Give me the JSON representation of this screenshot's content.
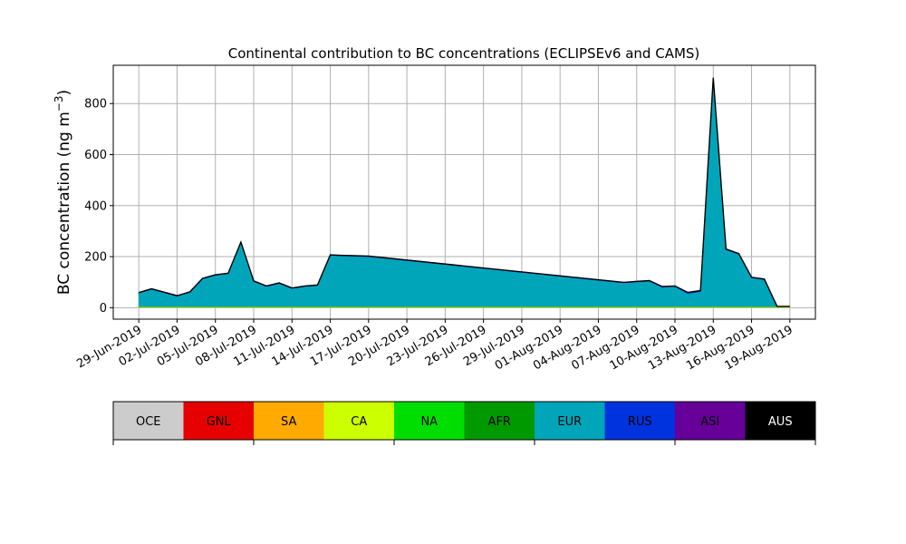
{
  "chart_data": {
    "type": "area",
    "title": "Continental contribution to BC concentrations (ECLIPSEv6 and CAMS)",
    "ylabel": "BC concentration (ng m",
    "ylabel_superscript": "−3",
    "ylabel_suffix": ")",
    "xlabel": "",
    "ylim": [
      -45,
      950
    ],
    "xlim": [
      "2019-06-27",
      "2019-08-21"
    ],
    "yticks": [
      0,
      200,
      400,
      600,
      800
    ],
    "xticks": [
      "2019-06-29",
      "2019-07-02",
      "2019-07-05",
      "2019-07-08",
      "2019-07-11",
      "2019-07-14",
      "2019-07-17",
      "2019-07-20",
      "2019-07-23",
      "2019-07-26",
      "2019-07-29",
      "2019-08-01",
      "2019-08-04",
      "2019-08-07",
      "2019-08-10",
      "2019-08-13",
      "2019-08-16",
      "2019-08-19"
    ],
    "xtick_labels": [
      "29-Jun-2019",
      "02-Jul-2019",
      "05-Jul-2019",
      "08-Jul-2019",
      "11-Jul-2019",
      "14-Jul-2019",
      "17-Jul-2019",
      "20-Jul-2019",
      "23-Jul-2019",
      "26-Jul-2019",
      "29-Jul-2019",
      "01-Aug-2019",
      "04-Aug-2019",
      "07-Aug-2019",
      "10-Aug-2019",
      "13-Aug-2019",
      "16-Aug-2019",
      "19-Aug-2019"
    ],
    "grid": true,
    "x": [
      "2019-06-29",
      "2019-06-30",
      "2019-07-02",
      "2019-07-03",
      "2019-07-04",
      "2019-07-05",
      "2019-07-06",
      "2019-07-07",
      "2019-07-08",
      "2019-07-09",
      "2019-07-10",
      "2019-07-11",
      "2019-07-12",
      "2019-07-13",
      "2019-07-14",
      "2019-07-15",
      "2019-07-17",
      "2019-08-06",
      "2019-08-07",
      "2019-08-08",
      "2019-08-09",
      "2019-08-10",
      "2019-08-11",
      "2019-08-12",
      "2019-08-13",
      "2019-08-14",
      "2019-08-15",
      "2019-08-16",
      "2019-08-17",
      "2019-08-18",
      "2019-08-19"
    ],
    "series": [
      {
        "name": "OCE",
        "color": "#cccccc",
        "values": [
          1,
          1,
          1,
          1,
          1,
          1,
          1,
          1,
          1,
          1,
          1,
          1,
          1,
          1,
          1,
          1,
          1,
          1,
          1,
          1,
          1,
          1,
          1,
          1,
          1,
          1,
          1,
          1,
          1,
          1,
          1
        ]
      },
      {
        "name": "GNL",
        "color": "#e60000",
        "values": [
          0,
          0,
          0,
          0,
          0,
          0,
          0,
          0,
          0,
          0,
          0,
          0,
          0,
          0,
          0,
          0,
          0,
          0,
          0,
          0,
          0,
          0,
          0,
          0,
          0,
          0,
          0,
          0,
          0,
          0,
          0
        ]
      },
      {
        "name": "SA",
        "color": "#ffaa00",
        "values": [
          1,
          1,
          1,
          1,
          1,
          1,
          1,
          1,
          1,
          1,
          1,
          1,
          1,
          1,
          1,
          1,
          1,
          1,
          1,
          1,
          1,
          1,
          1,
          1,
          1,
          1,
          1,
          1,
          1,
          1,
          1
        ]
      },
      {
        "name": "CA",
        "color": "#ccff00",
        "values": [
          1,
          1,
          1,
          1,
          1,
          1,
          1,
          1,
          1,
          1,
          1,
          1,
          1,
          1,
          1,
          1,
          1,
          1,
          1,
          1,
          1,
          1,
          1,
          1,
          1,
          1,
          1,
          1,
          1,
          1,
          1
        ]
      },
      {
        "name": "NA",
        "color": "#00dd00",
        "values": [
          2,
          2,
          2,
          2,
          2,
          2,
          2,
          2,
          2,
          2,
          2,
          2,
          2,
          2,
          2,
          2,
          2,
          2,
          2,
          2,
          2,
          2,
          2,
          2,
          2,
          2,
          2,
          2,
          2,
          2,
          2
        ]
      },
      {
        "name": "AFR",
        "color": "#009900",
        "values": [
          0,
          0,
          0,
          0,
          0,
          0,
          0,
          0,
          0,
          0,
          0,
          0,
          0,
          0,
          0,
          0,
          0,
          0,
          0,
          0,
          0,
          0,
          0,
          0,
          0,
          0,
          0,
          0,
          0,
          0,
          0
        ]
      },
      {
        "name": "EUR",
        "color": "#00a5ba",
        "values": [
          52,
          67,
          40,
          55,
          108,
          122,
          128,
          250,
          98,
          78,
          90,
          70,
          78,
          82,
          200,
          198,
          195,
          92,
          96,
          99,
          75,
          78,
          50,
          58,
          893,
          222,
          204,
          112,
          105,
          0,
          0
        ]
      },
      {
        "name": "RUS",
        "color": "#0033dd",
        "values": [
          1,
          1,
          1,
          1,
          1,
          1,
          1,
          1,
          1,
          1,
          1,
          1,
          1,
          1,
          1,
          1,
          1,
          1,
          1,
          1,
          2,
          1,
          4,
          3,
          2,
          2,
          2,
          1,
          1,
          0,
          0
        ]
      },
      {
        "name": "ASI",
        "color": "#660099",
        "values": [
          1,
          1,
          1,
          1,
          1,
          1,
          1,
          1,
          1,
          1,
          1,
          1,
          1,
          1,
          1,
          1,
          1,
          1,
          1,
          1,
          1,
          1,
          1,
          1,
          1,
          1,
          1,
          1,
          1,
          0,
          0
        ]
      },
      {
        "name": "AUS",
        "color": "#000000",
        "values": [
          0,
          0,
          0,
          0,
          0,
          0,
          0,
          0,
          0,
          0,
          0,
          0,
          0,
          0,
          0,
          0,
          0,
          0,
          0,
          0,
          0,
          0,
          0,
          0,
          0,
          0,
          0,
          0,
          0,
          0,
          0
        ]
      }
    ],
    "legend": {
      "placement": "colorbar-below",
      "labels": [
        "OCE",
        "GNL",
        "SA",
        "CA",
        "NA",
        "AFR",
        "EUR",
        "RUS",
        "ASI",
        "AUS"
      ],
      "label_colors": [
        "#000000",
        "#000000",
        "#000000",
        "#000000",
        "#000000",
        "#000000",
        "#000000",
        "#000000",
        "#000000",
        "#ffffff"
      ]
    }
  }
}
